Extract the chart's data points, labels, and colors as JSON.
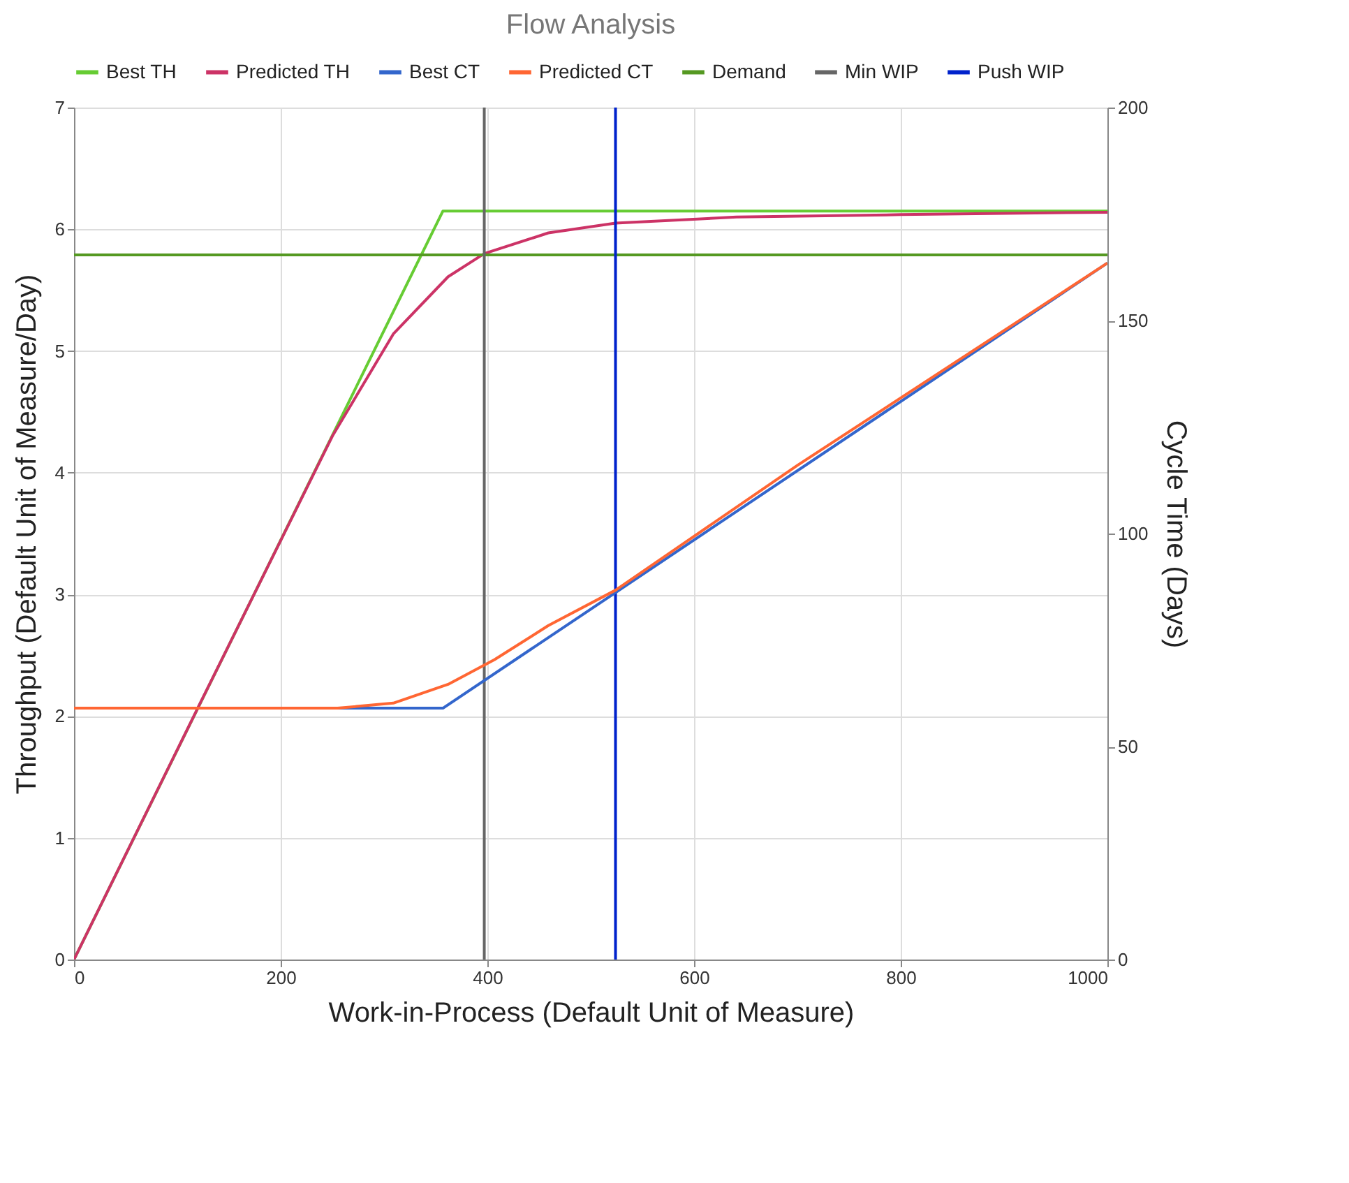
{
  "chart_data": {
    "type": "line",
    "title": "Flow Analysis",
    "xlabel": "Work-in-Process (Default Unit of Measure)",
    "ylabel": "Throughput (Default Unit of Measure/Day)",
    "y2label": "Cycle Time (Days)",
    "xlim": [
      0,
      1000
    ],
    "xticks": [
      0,
      200,
      400,
      600,
      800,
      1000
    ],
    "ylim": [
      0,
      7
    ],
    "yticks": [
      0,
      1,
      2,
      3,
      4,
      5,
      6,
      7
    ],
    "y2lim": [
      0,
      200
    ],
    "y2ticks": [
      0,
      50,
      100,
      150,
      200
    ],
    "grid": true,
    "legend": "top",
    "marker": "none",
    "line_style": "solid",
    "series": [
      {
        "name": "Best TH",
        "color": "#66cc33",
        "x": [
          0,
          357,
          1000
        ],
        "values": [
          0,
          6.15,
          6.15
        ]
      },
      {
        "name": "Predicted TH",
        "color": "#cc3366",
        "x": [
          0,
          120,
          250,
          309,
          362,
          397,
          459,
          524,
          641,
          800,
          1000
        ],
        "values": [
          0,
          2.07,
          4.3,
          5.14,
          5.61,
          5.8,
          5.97,
          6.05,
          6.1,
          6.12,
          6.14
        ]
      },
      {
        "name": "Best CT",
        "color": "#3366cc",
        "axis": "y2",
        "x": [
          0,
          357,
          1000
        ],
        "values": [
          59,
          59,
          163.5
        ]
      },
      {
        "name": "Predicted CT",
        "color": "#ff6633",
        "axis": "y2",
        "x": [
          0,
          255,
          309,
          362,
          407,
          459,
          524,
          700,
          1000
        ],
        "values": [
          59,
          59,
          60.2,
          64.6,
          70.4,
          78.4,
          86.7,
          116,
          163.5
        ]
      },
      {
        "name": "Demand",
        "color": "#559922",
        "x": [
          0,
          1000
        ],
        "values": [
          5.79,
          5.79
        ]
      },
      {
        "name": "Min WIP",
        "color": "#666666",
        "x": [
          397,
          397
        ],
        "values": [
          0,
          7
        ]
      },
      {
        "name": "Push WIP",
        "color": "#0022cc",
        "x": [
          524,
          524
        ],
        "values": [
          0,
          7
        ]
      }
    ]
  }
}
